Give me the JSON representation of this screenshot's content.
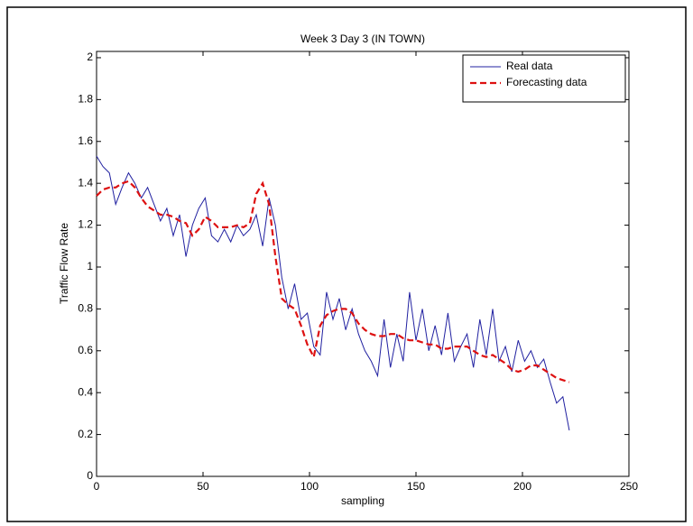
{
  "chart_data": {
    "type": "line",
    "title": "Week 3 Day 3 (IN TOWN)",
    "xlabel": "sampling",
    "ylabel": "Traffic Flow Rate",
    "xlim": [
      0,
      250
    ],
    "xticks": [
      0,
      50,
      100,
      150,
      200,
      250
    ],
    "ylim": [
      0,
      2.03
    ],
    "yticks": [
      0,
      0.2,
      0.4,
      0.6,
      0.8,
      1,
      1.2,
      1.4,
      1.6,
      1.8,
      2
    ],
    "legend": "upper right",
    "x": [
      0,
      3,
      6,
      9,
      12,
      15,
      18,
      21,
      24,
      27,
      30,
      33,
      36,
      39,
      42,
      45,
      48,
      51,
      54,
      57,
      60,
      63,
      66,
      69,
      72,
      75,
      78,
      81,
      84,
      87,
      90,
      93,
      96,
      99,
      102,
      105,
      108,
      111,
      114,
      117,
      120,
      123,
      126,
      129,
      132,
      135,
      138,
      141,
      144,
      147,
      150,
      153,
      156,
      159,
      162,
      165,
      168,
      171,
      174,
      177,
      180,
      183,
      186,
      189,
      192,
      195,
      198,
      201,
      204,
      207,
      210,
      213,
      216,
      219,
      222
    ],
    "series": [
      {
        "name": "Real data",
        "color": "#2020a0",
        "line_style": "solid",
        "values": [
          1.53,
          1.48,
          1.45,
          1.3,
          1.38,
          1.45,
          1.4,
          1.33,
          1.38,
          1.3,
          1.22,
          1.28,
          1.15,
          1.25,
          1.05,
          1.2,
          1.28,
          1.33,
          1.15,
          1.12,
          1.18,
          1.12,
          1.2,
          1.15,
          1.18,
          1.25,
          1.1,
          1.33,
          1.2,
          0.95,
          0.8,
          0.92,
          0.75,
          0.78,
          0.62,
          0.58,
          0.88,
          0.75,
          0.85,
          0.7,
          0.8,
          0.68,
          0.6,
          0.55,
          0.48,
          0.75,
          0.52,
          0.68,
          0.55,
          0.88,
          0.65,
          0.8,
          0.6,
          0.72,
          0.58,
          0.78,
          0.55,
          0.62,
          0.68,
          0.52,
          0.75,
          0.58,
          0.8,
          0.55,
          0.62,
          0.5,
          0.65,
          0.55,
          0.6,
          0.52,
          0.56,
          0.45,
          0.35,
          0.38,
          0.22
        ]
      },
      {
        "name": "Forecasting data",
        "color": "#dd1111",
        "line_style": "dashed",
        "values": [
          1.34,
          1.37,
          1.38,
          1.38,
          1.4,
          1.41,
          1.38,
          1.33,
          1.29,
          1.27,
          1.25,
          1.25,
          1.24,
          1.22,
          1.21,
          1.15,
          1.18,
          1.24,
          1.22,
          1.19,
          1.19,
          1.19,
          1.2,
          1.19,
          1.21,
          1.35,
          1.4,
          1.3,
          1.05,
          0.85,
          0.82,
          0.8,
          0.72,
          0.63,
          0.57,
          0.72,
          0.77,
          0.79,
          0.8,
          0.8,
          0.78,
          0.73,
          0.7,
          0.68,
          0.67,
          0.67,
          0.68,
          0.68,
          0.66,
          0.65,
          0.65,
          0.64,
          0.63,
          0.63,
          0.61,
          0.61,
          0.62,
          0.62,
          0.62,
          0.6,
          0.58,
          0.57,
          0.58,
          0.56,
          0.54,
          0.51,
          0.5,
          0.51,
          0.53,
          0.53,
          0.51,
          0.49,
          0.47,
          0.46,
          0.45
        ]
      }
    ]
  }
}
